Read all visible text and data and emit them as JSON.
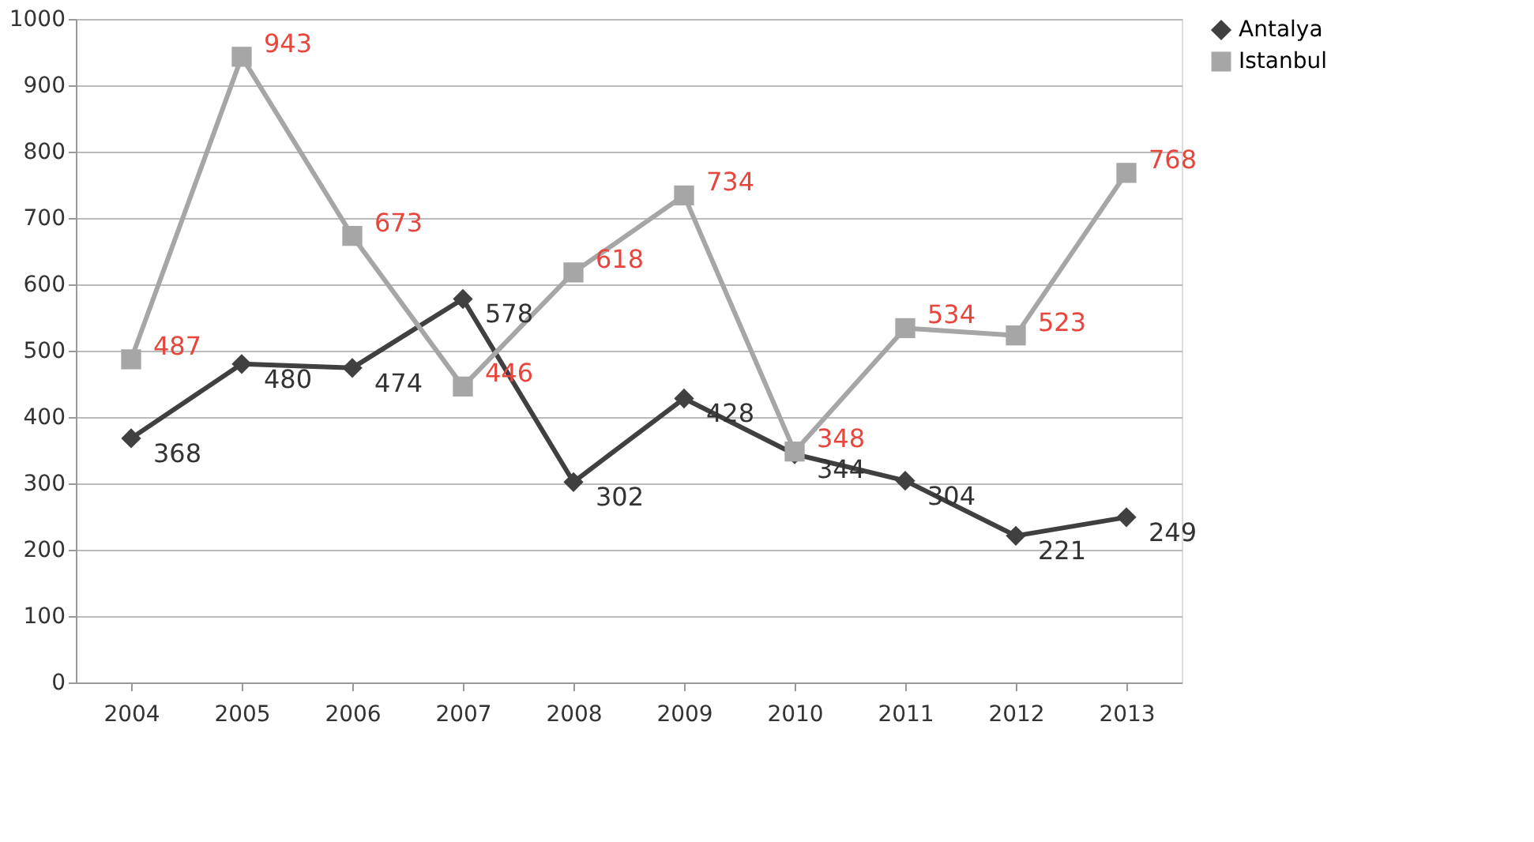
{
  "chart_data": {
    "type": "line",
    "categories": [
      "2004",
      "2005",
      "2006",
      "2007",
      "2008",
      "2009",
      "2010",
      "2011",
      "2012",
      "2013"
    ],
    "series": [
      {
        "name": "Antalya",
        "color": "#404040",
        "marker": "diamond",
        "values": [
          368,
          480,
          474,
          578,
          302,
          428,
          344,
          304,
          221,
          249
        ]
      },
      {
        "name": "Istanbul",
        "color": "#a6a6a6",
        "marker": "square",
        "values": [
          487,
          943,
          673,
          446,
          618,
          734,
          348,
          534,
          523,
          768
        ]
      }
    ],
    "ylim": [
      0,
      1000
    ],
    "yticks": [
      0,
      100,
      200,
      300,
      400,
      500,
      600,
      700,
      800,
      900,
      1000
    ],
    "grid": "y",
    "legend": "right",
    "data_labels": true,
    "line_style": "solid"
  }
}
